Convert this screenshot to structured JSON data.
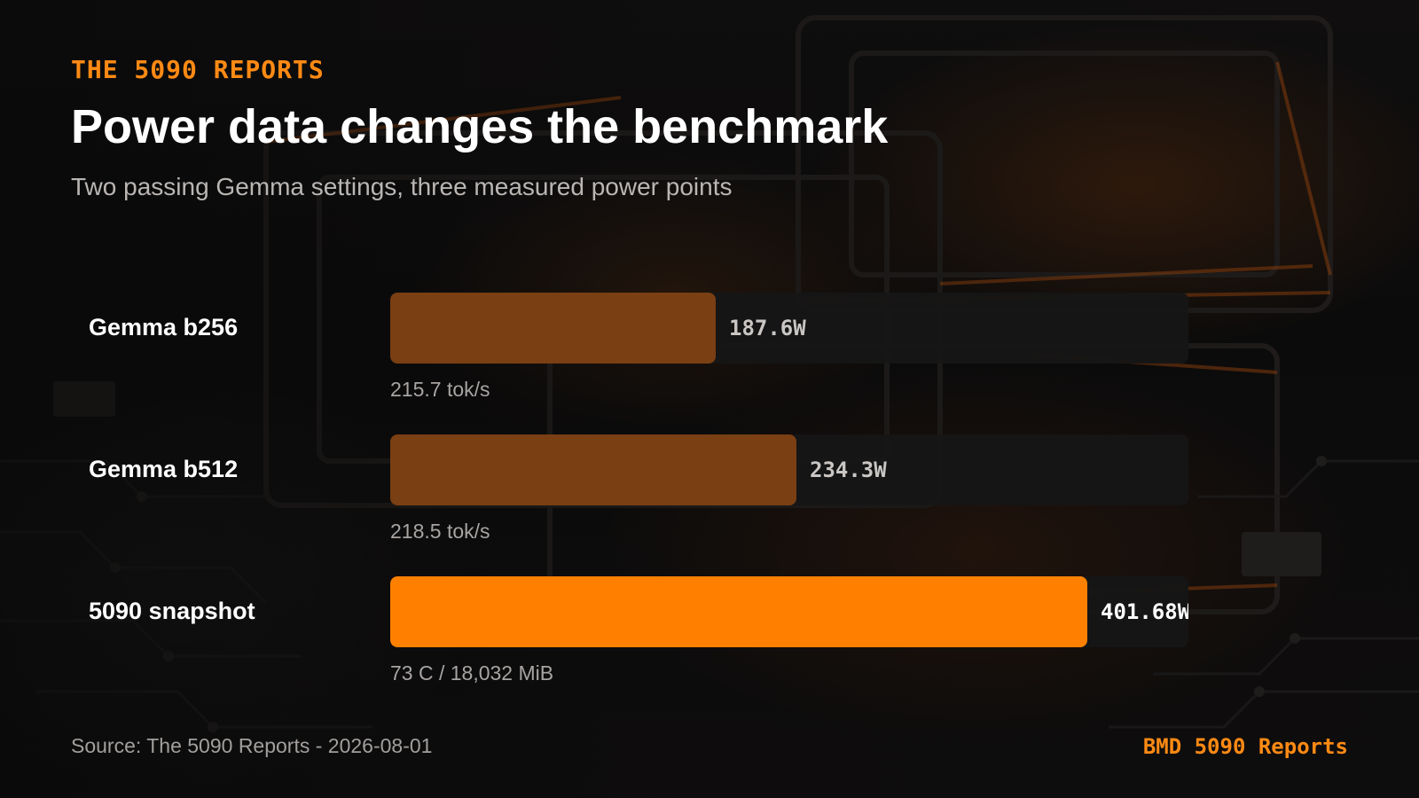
{
  "header": {
    "eyebrow": "THE 5090 REPORTS",
    "title": "Power data changes the benchmark",
    "subtitle": "Two passing Gemma settings, three measured power points"
  },
  "footer": {
    "source": "Source: The 5090 Reports - 2026-08-01",
    "brand": "BMD 5090 Reports"
  },
  "colors": {
    "accent": "#ff8a14",
    "bar_muted": "#7a3f12",
    "bar_highlight": "#ff8000",
    "track": "#161616"
  },
  "chart_data": {
    "type": "bar",
    "orientation": "horizontal",
    "title": "Power data changes the benchmark",
    "unit": "W",
    "xlim": [
      0,
      460
    ],
    "grid": false,
    "categories": [
      "Gemma b256",
      "Gemma b512",
      "5090 snapshot"
    ],
    "values": [
      187.6,
      234.3,
      401.68
    ],
    "value_labels": [
      "187.6W",
      "234.3W",
      "401.68W"
    ],
    "annotations": [
      "215.7 tok/s",
      "218.5 tok/s",
      "73 C / 18,032 MiB"
    ],
    "highlight": [
      false,
      false,
      true
    ]
  }
}
